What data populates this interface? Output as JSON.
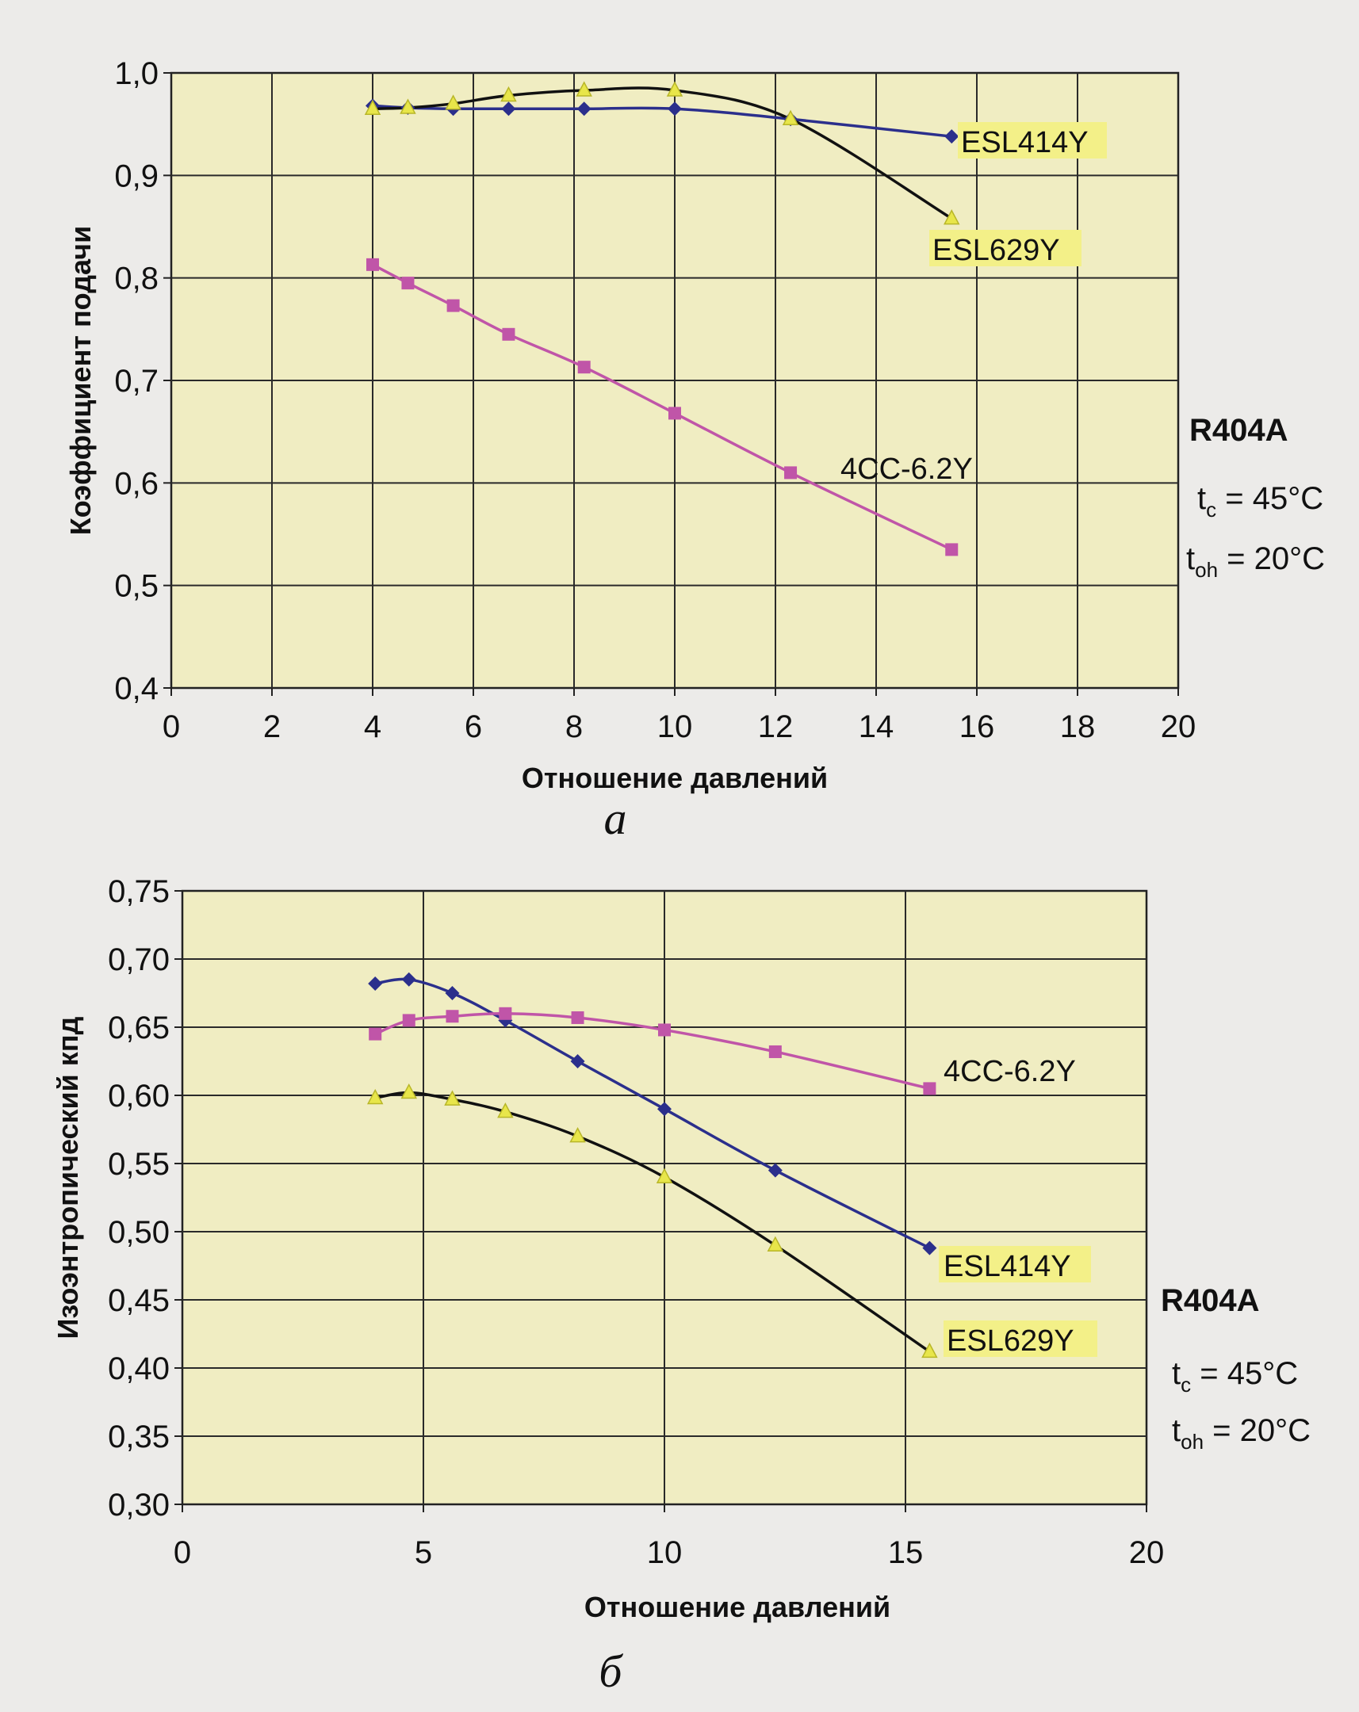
{
  "chart_data": [
    {
      "type": "line",
      "title": "",
      "caption": "а",
      "xlabel": "Отношение давлений",
      "ylabel": "Коэффициент подачи",
      "xlim": [
        0,
        20
      ],
      "ylim": [
        0.4,
        1.0
      ],
      "x_ticks": [
        0,
        2,
        4,
        6,
        8,
        10,
        12,
        14,
        16,
        18,
        20
      ],
      "x_tick_labels": [
        "0",
        "2",
        "4",
        "6",
        "8",
        "10",
        "12",
        "14",
        "16",
        "18",
        "20"
      ],
      "y_ticks": [
        0.4,
        0.5,
        0.6,
        0.7,
        0.8,
        0.9,
        1.0
      ],
      "y_tick_labels": [
        "0,4",
        "0,5",
        "0,6",
        "0,7",
        "0,8",
        "0,9",
        "1,0"
      ],
      "grid": true,
      "series": [
        {
          "name": "ESL414Y",
          "color": "#2b2f8c",
          "marker": "diamond",
          "label_bg": "#f3f088",
          "x": [
            4,
            4.7,
            5.6,
            6.7,
            8.2,
            10,
            12.3,
            15.5
          ],
          "y": [
            0.968,
            0.966,
            0.965,
            0.965,
            0.965,
            0.965,
            0.955,
            0.938
          ]
        },
        {
          "name": "ESL629Y",
          "color": "#111111",
          "marker": "triangle",
          "label_bg": "#f3f088",
          "x": [
            4,
            4.7,
            5.6,
            6.7,
            8.2,
            10,
            12.3,
            15.5
          ],
          "y": [
            0.965,
            0.966,
            0.97,
            0.978,
            0.983,
            0.983,
            0.955,
            0.858
          ]
        },
        {
          "name": "4CC-6.2Y",
          "color": "#c055a8",
          "marker": "square",
          "label_bg": "",
          "x": [
            4,
            4.7,
            5.6,
            6.7,
            8.2,
            10,
            12.3,
            15.5
          ],
          "y": [
            0.813,
            0.795,
            0.773,
            0.745,
            0.713,
            0.668,
            0.61,
            0.535
          ]
        }
      ],
      "refrigerant": "R404A",
      "conditions": [
        {
          "sym": "t",
          "sub": "c",
          "rest": " = 45°C"
        },
        {
          "sym": "t",
          "sub": "oh",
          "rest": " = 20°C"
        }
      ]
    },
    {
      "type": "line",
      "title": "",
      "caption": "б",
      "xlabel": "Отношение давлений",
      "ylabel": "Изоэнтропический кпд",
      "xlim": [
        0,
        20
      ],
      "ylim": [
        0.3,
        0.75
      ],
      "x_ticks": [
        0,
        5,
        10,
        15,
        20
      ],
      "x_tick_labels": [
        "0",
        "5",
        "10",
        "15",
        "20"
      ],
      "y_ticks": [
        0.3,
        0.35,
        0.4,
        0.45,
        0.5,
        0.55,
        0.6,
        0.65,
        0.7,
        0.75
      ],
      "y_tick_labels": [
        "0,30",
        "0,35",
        "0,40",
        "0,45",
        "0,50",
        "0,55",
        "0,60",
        "0,65",
        "0,70",
        "0,75"
      ],
      "grid": true,
      "series": [
        {
          "name": "ESL414Y",
          "color": "#2b2f8c",
          "marker": "diamond",
          "label_bg": "#f3f088",
          "x": [
            4,
            4.7,
            5.6,
            6.7,
            8.2,
            10,
            12.3,
            15.5
          ],
          "y": [
            0.682,
            0.685,
            0.675,
            0.655,
            0.625,
            0.59,
            0.545,
            0.488
          ]
        },
        {
          "name": "ESL629Y",
          "color": "#111111",
          "marker": "triangle",
          "label_bg": "#f3f088",
          "x": [
            4,
            4.7,
            5.6,
            6.7,
            8.2,
            10,
            12.3,
            15.5
          ],
          "y": [
            0.598,
            0.602,
            0.597,
            0.588,
            0.57,
            0.54,
            0.49,
            0.412
          ]
        },
        {
          "name": "4CC-6.2Y",
          "color": "#c055a8",
          "marker": "square",
          "label_bg": "",
          "x": [
            4,
            4.7,
            5.6,
            6.7,
            8.2,
            10,
            12.3,
            15.5
          ],
          "y": [
            0.645,
            0.655,
            0.658,
            0.66,
            0.657,
            0.648,
            0.632,
            0.605
          ]
        }
      ],
      "refrigerant": "R404A",
      "conditions": [
        {
          "sym": "t",
          "sub": "c",
          "rest": " = 45°C"
        },
        {
          "sym": "t",
          "sub": "oh",
          "rest": " = 20°C"
        }
      ]
    }
  ]
}
